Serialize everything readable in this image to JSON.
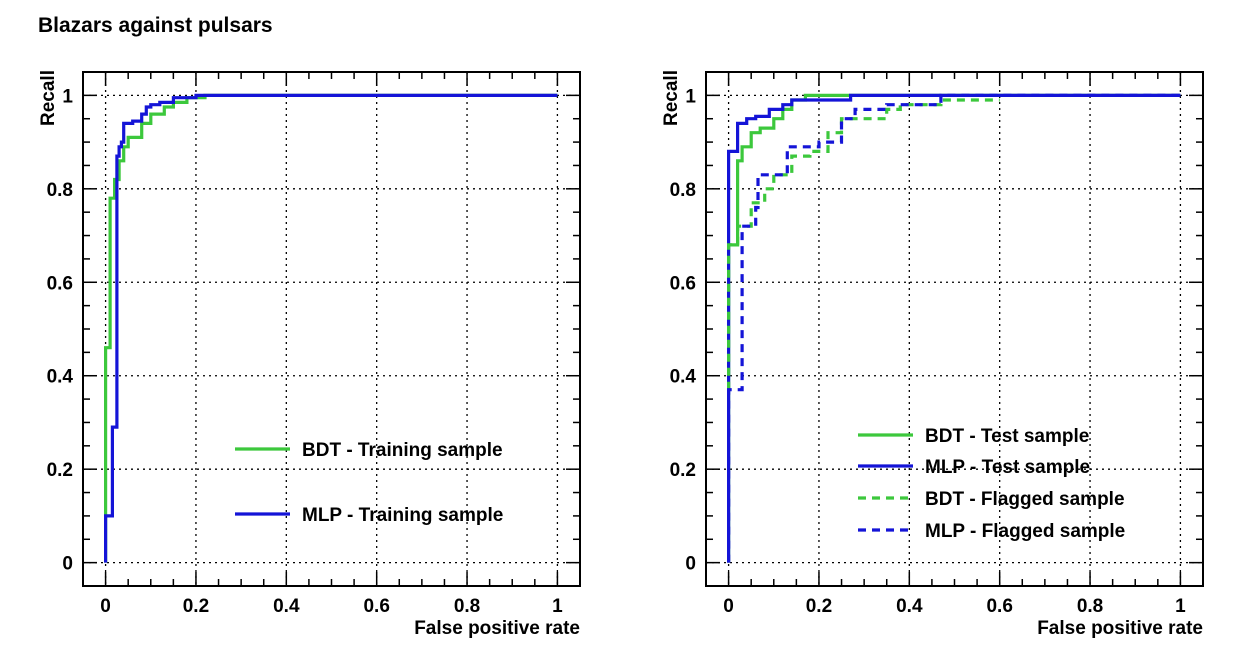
{
  "figure": {
    "title": "Blazars against pulsars"
  },
  "colors": {
    "bdt": "#3cc83c",
    "mlp": "#1414d7",
    "frame": "#000000",
    "grid": "#000000"
  },
  "chart_data": [
    {
      "type": "line",
      "title": "",
      "xlabel": "False positive rate",
      "ylabel": "Recall",
      "xlim": [
        -0.05,
        1.05
      ],
      "ylim": [
        -0.05,
        1.05
      ],
      "x_ticks": [
        0,
        0.2,
        0.4,
        0.6,
        0.8,
        1
      ],
      "x_tick_labels": [
        "0",
        "0.2",
        "0.4",
        "0.6",
        "0.8",
        "1"
      ],
      "y_ticks": [
        0,
        0.2,
        0.4,
        0.6,
        0.8,
        1
      ],
      "y_tick_labels": [
        "0",
        "0.2",
        "0.4",
        "0.6",
        "0.8",
        "1"
      ],
      "grid": true,
      "legend_position": "bottom-right",
      "series": [
        {
          "name": "BDT - Training sample",
          "color": "#3cc83c",
          "dash": "solid",
          "points": [
            [
              0,
              0
            ],
            [
              0,
              0.1
            ],
            [
              0,
              0.46
            ],
            [
              0.01,
              0.46
            ],
            [
              0.01,
              0.78
            ],
            [
              0.02,
              0.78
            ],
            [
              0.02,
              0.82
            ],
            [
              0.03,
              0.82
            ],
            [
              0.03,
              0.86
            ],
            [
              0.04,
              0.86
            ],
            [
              0.04,
              0.89
            ],
            [
              0.05,
              0.89
            ],
            [
              0.05,
              0.91
            ],
            [
              0.08,
              0.91
            ],
            [
              0.08,
              0.94
            ],
            [
              0.1,
              0.94
            ],
            [
              0.1,
              0.96
            ],
            [
              0.13,
              0.96
            ],
            [
              0.13,
              0.975
            ],
            [
              0.15,
              0.975
            ],
            [
              0.15,
              0.985
            ],
            [
              0.18,
              0.985
            ],
            [
              0.18,
              0.995
            ],
            [
              0.22,
              0.995
            ],
            [
              0.22,
              1
            ],
            [
              1,
              1
            ]
          ]
        },
        {
          "name": "MLP - Training sample",
          "color": "#1414d7",
          "dash": "solid",
          "points": [
            [
              0,
              0
            ],
            [
              0,
              0.1
            ],
            [
              0.015,
              0.1
            ],
            [
              0.015,
              0.29
            ],
            [
              0.025,
              0.29
            ],
            [
              0.025,
              0.87
            ],
            [
              0.03,
              0.87
            ],
            [
              0.03,
              0.89
            ],
            [
              0.035,
              0.89
            ],
            [
              0.035,
              0.9
            ],
            [
              0.04,
              0.9
            ],
            [
              0.04,
              0.94
            ],
            [
              0.06,
              0.94
            ],
            [
              0.06,
              0.945
            ],
            [
              0.08,
              0.945
            ],
            [
              0.08,
              0.96
            ],
            [
              0.09,
              0.96
            ],
            [
              0.09,
              0.975
            ],
            [
              0.1,
              0.975
            ],
            [
              0.1,
              0.98
            ],
            [
              0.12,
              0.98
            ],
            [
              0.12,
              0.985
            ],
            [
              0.15,
              0.985
            ],
            [
              0.15,
              0.995
            ],
            [
              0.2,
              0.995
            ],
            [
              0.2,
              1
            ],
            [
              1,
              1
            ]
          ]
        }
      ]
    },
    {
      "type": "line",
      "title": "",
      "xlabel": "False positive rate",
      "ylabel": "Recall",
      "xlim": [
        -0.05,
        1.05
      ],
      "ylim": [
        -0.05,
        1.05
      ],
      "x_ticks": [
        0,
        0.2,
        0.4,
        0.6,
        0.8,
        1
      ],
      "x_tick_labels": [
        "0",
        "0.2",
        "0.4",
        "0.6",
        "0.8",
        "1"
      ],
      "y_ticks": [
        0,
        0.2,
        0.4,
        0.6,
        0.8,
        1
      ],
      "y_tick_labels": [
        "0",
        "0.2",
        "0.4",
        "0.6",
        "0.8",
        "1"
      ],
      "grid": true,
      "legend_position": "bottom-right",
      "series": [
        {
          "name": "BDT - Test sample",
          "color": "#3cc83c",
          "dash": "solid",
          "points": [
            [
              0,
              0
            ],
            [
              0,
              0.68
            ],
            [
              0.02,
              0.68
            ],
            [
              0.02,
              0.86
            ],
            [
              0.03,
              0.86
            ],
            [
              0.03,
              0.89
            ],
            [
              0.05,
              0.89
            ],
            [
              0.05,
              0.92
            ],
            [
              0.07,
              0.92
            ],
            [
              0.07,
              0.93
            ],
            [
              0.1,
              0.93
            ],
            [
              0.1,
              0.95
            ],
            [
              0.12,
              0.95
            ],
            [
              0.12,
              0.97
            ],
            [
              0.14,
              0.97
            ],
            [
              0.14,
              0.99
            ],
            [
              0.17,
              0.99
            ],
            [
              0.17,
              1
            ],
            [
              1,
              1
            ]
          ]
        },
        {
          "name": "MLP - Test sample",
          "color": "#1414d7",
          "dash": "solid",
          "points": [
            [
              0,
              0
            ],
            [
              0,
              0.88
            ],
            [
              0.02,
              0.88
            ],
            [
              0.02,
              0.94
            ],
            [
              0.04,
              0.94
            ],
            [
              0.04,
              0.95
            ],
            [
              0.06,
              0.95
            ],
            [
              0.06,
              0.955
            ],
            [
              0.09,
              0.955
            ],
            [
              0.09,
              0.97
            ],
            [
              0.12,
              0.97
            ],
            [
              0.12,
              0.98
            ],
            [
              0.14,
              0.98
            ],
            [
              0.14,
              0.99
            ],
            [
              0.27,
              0.99
            ],
            [
              0.27,
              1
            ],
            [
              1,
              1
            ]
          ]
        },
        {
          "name": "BDT - Flagged sample",
          "color": "#3cc83c",
          "dash": "dashed",
          "points": [
            [
              0,
              0.37
            ],
            [
              0,
              0.68
            ],
            [
              0.02,
              0.68
            ],
            [
              0.02,
              0.72
            ],
            [
              0.05,
              0.72
            ],
            [
              0.05,
              0.77
            ],
            [
              0.08,
              0.77
            ],
            [
              0.08,
              0.8
            ],
            [
              0.1,
              0.8
            ],
            [
              0.1,
              0.83
            ],
            [
              0.14,
              0.83
            ],
            [
              0.14,
              0.87
            ],
            [
              0.18,
              0.87
            ],
            [
              0.18,
              0.88
            ],
            [
              0.22,
              0.88
            ],
            [
              0.22,
              0.92
            ],
            [
              0.25,
              0.92
            ],
            [
              0.25,
              0.95
            ],
            [
              0.3,
              0.95
            ],
            [
              0.3,
              0.95
            ],
            [
              0.35,
              0.95
            ],
            [
              0.35,
              0.97
            ],
            [
              0.38,
              0.97
            ],
            [
              0.38,
              0.98
            ],
            [
              0.47,
              0.98
            ],
            [
              0.47,
              0.99
            ],
            [
              0.6,
              0.99
            ]
          ]
        },
        {
          "name": "MLP - Flagged sample",
          "color": "#1414d7",
          "dash": "dashed",
          "points": [
            [
              0,
              0
            ],
            [
              0,
              0.37
            ],
            [
              0.03,
              0.37
            ],
            [
              0.03,
              0.72
            ],
            [
              0.06,
              0.72
            ],
            [
              0.06,
              0.76
            ],
            [
              0.065,
              0.76
            ],
            [
              0.065,
              0.83
            ],
            [
              0.1,
              0.83
            ],
            [
              0.1,
              0.83
            ],
            [
              0.13,
              0.83
            ],
            [
              0.13,
              0.89
            ],
            [
              0.2,
              0.89
            ],
            [
              0.2,
              0.9
            ],
            [
              0.25,
              0.9
            ],
            [
              0.25,
              0.95
            ],
            [
              0.28,
              0.95
            ],
            [
              0.28,
              0.97
            ],
            [
              0.35,
              0.97
            ],
            [
              0.35,
              0.98
            ],
            [
              0.47,
              0.98
            ],
            [
              0.47,
              1
            ],
            [
              1,
              1
            ]
          ]
        }
      ]
    }
  ]
}
